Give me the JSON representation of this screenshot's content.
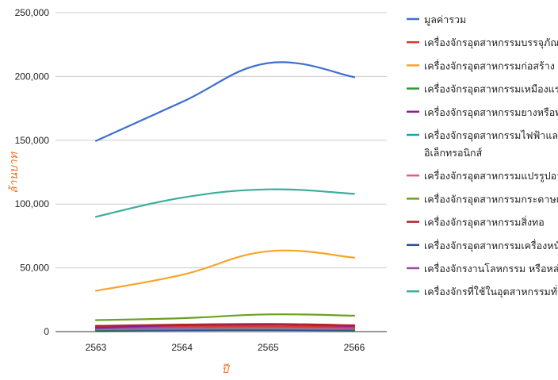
{
  "chart_data": {
    "type": "line",
    "xlabel": "ปี",
    "ylabel": "ล้านบาท",
    "categories": [
      "2563",
      "2564",
      "2565",
      "2566"
    ],
    "ylim": [
      0,
      250000
    ],
    "yticks": [
      {
        "v": 0,
        "label": "0"
      },
      {
        "v": 50000,
        "label": "50,000"
      },
      {
        "v": 100000,
        "label": "100,000"
      },
      {
        "v": 150000,
        "label": "150,000"
      },
      {
        "v": 200000,
        "label": "200,000"
      },
      {
        "v": 250000,
        "label": "250,000"
      }
    ],
    "grid": true,
    "legend_position": "right",
    "series": [
      {
        "name": "มูลค่ารวม",
        "color": "#3f6fd1",
        "values": [
          149500,
          180000,
          210500,
          199500
        ]
      },
      {
        "name": "เครื่องจักรอุตสาหกรรมบรรจุภัณฑ์",
        "color": "#d83a2f",
        "values": [
          3500,
          4500,
          4200,
          3500
        ]
      },
      {
        "name": "เครื่องจักรอุตสาหกรรมก่อสร้าง",
        "color": "#f7a42b",
        "values": [
          32000,
          44500,
          63000,
          58000
        ]
      },
      {
        "name": "เครื่องจักรอุตสาหกรรมเหมืองแร่",
        "color": "#2f9a2f",
        "values": [
          1500,
          2000,
          2200,
          1800
        ]
      },
      {
        "name": "เครื่องจักรอุตสาหกรรมยางหรือพลาสติก",
        "color": "#8a1e93",
        "values": [
          3000,
          5000,
          5500,
          4500
        ]
      },
      {
        "name": "เครื่องจักรอุตสาหกรรมไฟฟ้าและอิเล็กทรอนิกส์",
        "name_lines": [
          "เครื่องจักรอุตสาหกรรมไฟฟ้าและ",
          "อิเล็กทรอนิกส์"
        ],
        "color": "#1aa3b5",
        "values": [
          2500,
          3000,
          3500,
          3000
        ]
      },
      {
        "name": "เครื่องจักรอุตสาหกรรมแปรรูปอาหาร",
        "color": "#e8578f",
        "values": [
          2000,
          2500,
          2800,
          2500
        ]
      },
      {
        "name": "เครื่องจักรอุตสาหกรรมกระดาษและสิ่ง...",
        "color": "#6aa121",
        "values": [
          9000,
          10500,
          13500,
          12500
        ]
      },
      {
        "name": "เครื่องจักรอุตสาหกรรมสิ่งทอ",
        "color": "#b3232a",
        "values": [
          4500,
          5500,
          6000,
          5000
        ]
      },
      {
        "name": "เครื่องจักรอุตสาหกรรมเครื่องหนัง",
        "color": "#2e4f8e",
        "values": [
          1000,
          1200,
          1300,
          1100
        ]
      },
      {
        "name": "เครื่องจักรงานโลหกรรม หรือหล่อโลหะ",
        "color": "#9c4fa8",
        "values": [
          2500,
          3500,
          4000,
          3000
        ]
      },
      {
        "name": "เครื่องจักรที่ใช้ในอุตสาหกรรมทั่วไป",
        "color": "#3aae9b",
        "values": [
          90000,
          105000,
          111500,
          108000
        ]
      }
    ]
  }
}
